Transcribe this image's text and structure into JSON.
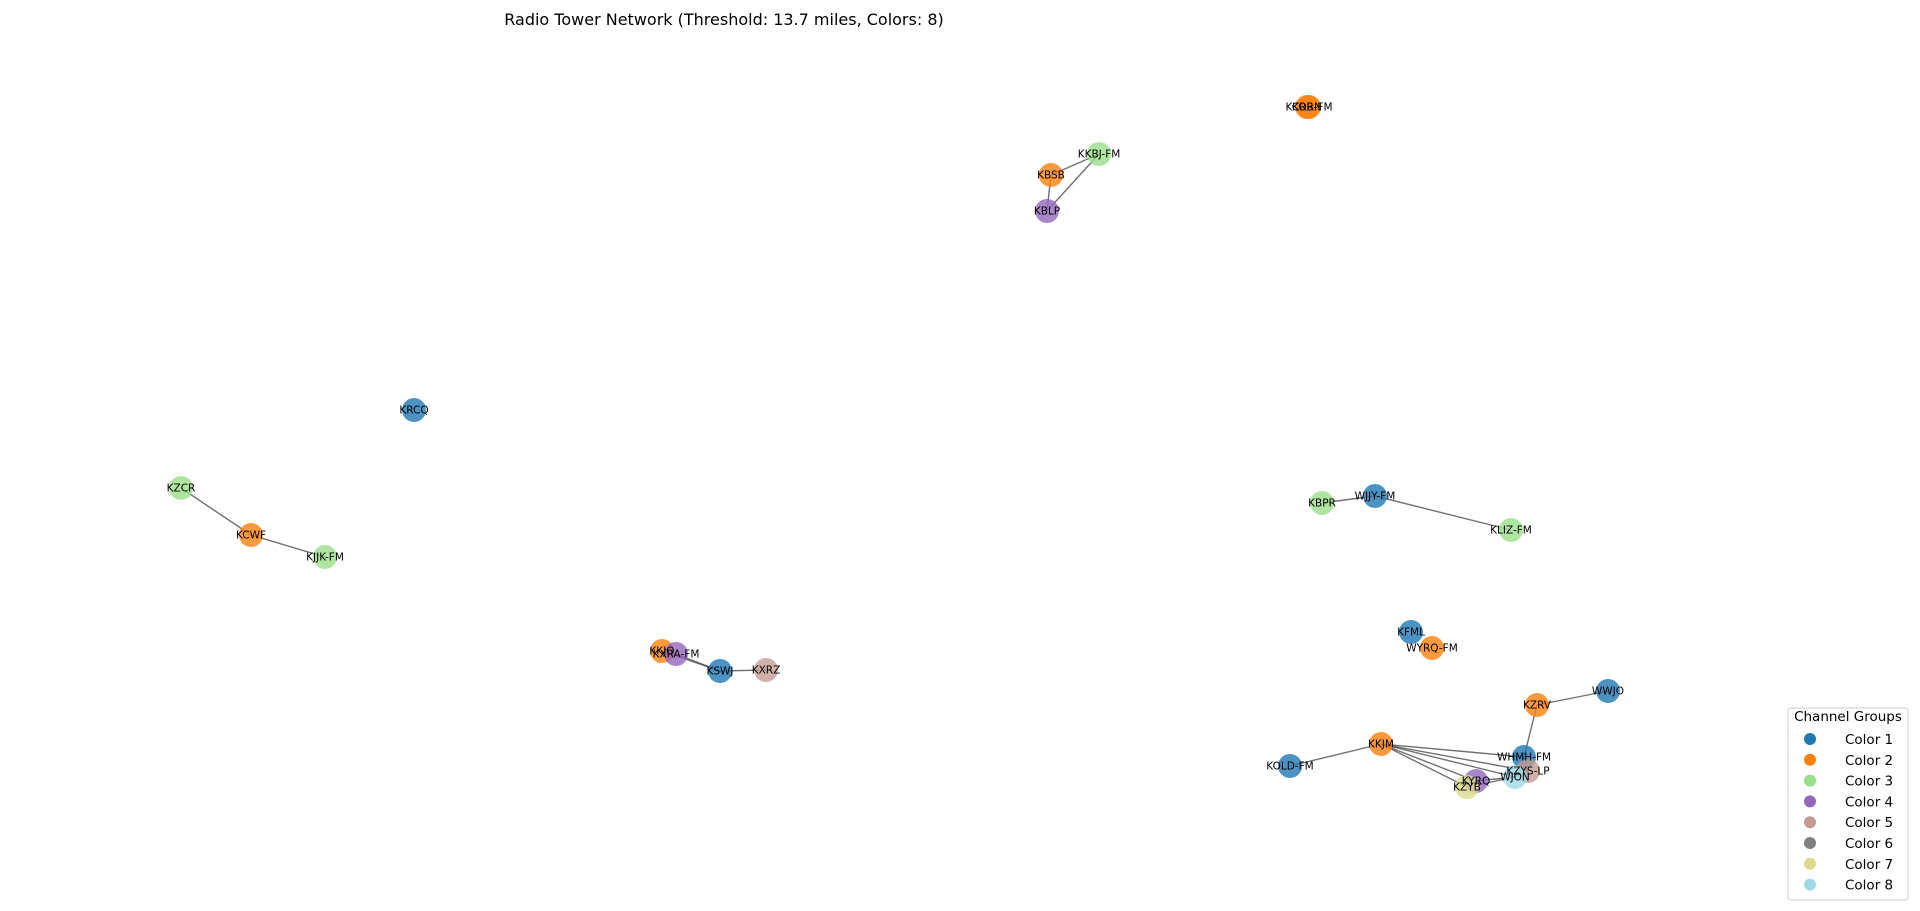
{
  "title": "Radio Tower Network (Threshold: 13.7 miles, Colors: 8)",
  "legend": {
    "title": "Channel Groups",
    "items": [
      {
        "label": "Color 1",
        "color": "#1f77b4"
      },
      {
        "label": "Color 2",
        "color": "#ff7f0e"
      },
      {
        "label": "Color 3",
        "color": "#98df8a"
      },
      {
        "label": "Color 4",
        "color": "#9467bd"
      },
      {
        "label": "Color 5",
        "color": "#c49c94"
      },
      {
        "label": "Color 6",
        "color": "#7f7f7f"
      },
      {
        "label": "Color 7",
        "color": "#dbdb8d"
      },
      {
        "label": "Color 8",
        "color": "#9edae5"
      }
    ]
  },
  "nodes": [
    {
      "id": "KCRB-FM",
      "group": 2
    },
    {
      "id": "KORN",
      "group": 2
    },
    {
      "id": "KKBJ-FM",
      "group": 3
    },
    {
      "id": "KBSB",
      "group": 2
    },
    {
      "id": "KBLP",
      "group": 4
    },
    {
      "id": "KRCQ",
      "group": 1
    },
    {
      "id": "KZCR",
      "group": 3
    },
    {
      "id": "KCWF",
      "group": 2
    },
    {
      "id": "KJJK-FM",
      "group": 3
    },
    {
      "id": "KBPR",
      "group": 3
    },
    {
      "id": "WJJY-FM",
      "group": 1
    },
    {
      "id": "KLIZ-FM",
      "group": 3
    },
    {
      "id": "KKJO",
      "group": 2
    },
    {
      "id": "KXRA-FM",
      "group": 4
    },
    {
      "id": "KSWJ",
      "group": 1
    },
    {
      "id": "KXRZ",
      "group": 5
    },
    {
      "id": "KFML",
      "group": 1
    },
    {
      "id": "WYRQ-FM",
      "group": 2
    },
    {
      "id": "KZRV",
      "group": 2
    },
    {
      "id": "WWJO",
      "group": 1
    },
    {
      "id": "KKJM",
      "group": 2
    },
    {
      "id": "KOLD-FM",
      "group": 1
    },
    {
      "id": "WHMH-FM",
      "group": 1
    },
    {
      "id": "KZYS-LP",
      "group": 5
    },
    {
      "id": "KYRQ",
      "group": 4
    },
    {
      "id": "KZYB",
      "group": 7
    },
    {
      "id": "WJON",
      "group": 8
    }
  ],
  "edges": [
    [
      "KKBJ-FM",
      "KBSB"
    ],
    [
      "KKBJ-FM",
      "KBLP"
    ],
    [
      "KBSB",
      "KBLP"
    ],
    [
      "KZCR",
      "KCWF"
    ],
    [
      "KCWF",
      "KJJK-FM"
    ],
    [
      "KBPR",
      "WJJY-FM"
    ],
    [
      "WJJY-FM",
      "KLIZ-FM"
    ],
    [
      "KKJO",
      "KXRA-FM"
    ],
    [
      "KKJO",
      "KSWJ"
    ],
    [
      "KXRA-FM",
      "KSWJ"
    ],
    [
      "KSWJ",
      "KXRZ"
    ],
    [
      "KZRV",
      "WWJO"
    ],
    [
      "KZRV",
      "WHMH-FM"
    ],
    [
      "KOLD-FM",
      "KKJM"
    ],
    [
      "KKJM",
      "WHMH-FM"
    ],
    [
      "KKJM",
      "KZYS-LP"
    ],
    [
      "KKJM",
      "WJON"
    ],
    [
      "KKJM",
      "KYRQ"
    ],
    [
      "KKJM",
      "KZYB"
    ],
    [
      "WHMH-FM",
      "KZYS-LP"
    ],
    [
      "WHMH-FM",
      "WJON"
    ],
    [
      "KYRQ",
      "WJON"
    ],
    [
      "KZYB",
      "WJON"
    ],
    [
      "KZYB",
      "KYRQ"
    ],
    [
      "KZYS-LP",
      "WJON"
    ]
  ]
}
